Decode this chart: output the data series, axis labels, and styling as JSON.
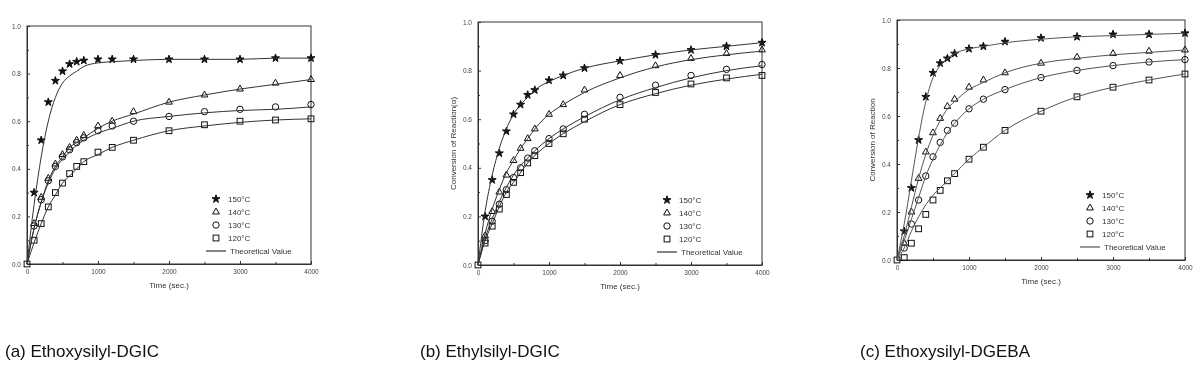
{
  "chart_data": [
    {
      "type": "scatter",
      "title": "(a) Ethoxysilyl-DGIC",
      "xlabel": "Time (sec.)",
      "xlim": [
        0,
        4000
      ],
      "ylim": [
        0,
        1
      ],
      "xticks": [
        0,
        {
          "value": 500,
          "label": null
        },
        1000,
        {
          "value": 1500,
          "label": null
        },
        2000,
        {
          "value": 2500,
          "label": null
        },
        3000,
        {
          "value": 3500,
          "label": null
        },
        4000
      ],
      "yticks": [
        "0.0",
        {
          "value": 0.1,
          "label": null
        },
        {
          "value": 0.2,
          "label": "0.2"
        },
        {
          "value": 0.3,
          "label": null
        },
        {
          "value": 0.4,
          "label": "0.4"
        },
        {
          "value": 0.5,
          "label": null
        },
        {
          "value": 0.6,
          "label": "0.6"
        },
        {
          "value": 0.7,
          "label": null
        },
        {
          "value": 0.8,
          "label": "0.8"
        },
        {
          "value": 0.9,
          "label": null
        },
        {
          "value": 1,
          "label": "1.0"
        }
      ],
      "x": [
        0,
        100,
        200,
        300,
        400,
        500,
        600,
        700,
        800,
        1000,
        1200,
        1500,
        2000,
        2500,
        3000,
        3500,
        4000
      ],
      "legend": "bottom right",
      "grid": false,
      "series": [
        {
          "name": "150°C",
          "color": "#111111",
          "marker": "star",
          "values": [
            null,
            0.3,
            0.52,
            0.68,
            0.77,
            0.81,
            0.84,
            0.85,
            0.855,
            0.86,
            0.86,
            0.86,
            0.86,
            0.86,
            0.86,
            0.865,
            0.865
          ]
        },
        {
          "name": "140°C",
          "color": "#111111",
          "marker": "triangle",
          "values": [
            null,
            0.17,
            0.28,
            0.36,
            0.42,
            0.46,
            0.49,
            0.52,
            0.54,
            0.58,
            0.6,
            0.64,
            0.68,
            0.71,
            0.735,
            0.76,
            0.775
          ]
        },
        {
          "name": "130°C",
          "color": "#111111",
          "marker": "circle",
          "values": [
            null,
            0.16,
            0.27,
            0.35,
            0.41,
            0.45,
            0.48,
            0.51,
            0.53,
            0.56,
            0.58,
            0.6,
            0.62,
            0.64,
            0.65,
            0.66,
            0.67
          ]
        },
        {
          "name": "120°C",
          "color": "#111111",
          "marker": "square",
          "values": [
            0,
            0.1,
            0.17,
            0.24,
            0.3,
            0.34,
            0.38,
            0.41,
            0.43,
            0.47,
            0.49,
            0.52,
            0.56,
            0.585,
            0.6,
            0.605,
            0.61
          ]
        },
        {
          "name": "Theoretical Value",
          "type": "line",
          "color": "#333333",
          "line_style": "solid",
          "values": [
            0,
            0.25,
            0.45,
            0.6,
            0.7,
            0.76,
            0.79,
            0.81,
            0.83,
            0.845,
            0.85,
            0.855,
            0.86,
            0.86,
            0.86,
            0.865,
            0.865
          ]
        },
        {
          "type": "line",
          "color": "#333333",
          "line_style": "solid",
          "values": [
            0,
            0.15,
            0.26,
            0.35,
            0.41,
            0.45,
            0.49,
            0.51,
            0.53,
            0.57,
            0.6,
            0.63,
            0.68,
            0.71,
            0.735,
            0.755,
            0.775
          ]
        },
        {
          "type": "line",
          "color": "#333333",
          "line_style": "solid",
          "values": [
            0,
            0.15,
            0.26,
            0.34,
            0.4,
            0.44,
            0.47,
            0.5,
            0.52,
            0.55,
            0.57,
            0.6,
            0.62,
            0.635,
            0.645,
            0.65,
            0.66
          ]
        },
        {
          "type": "line",
          "color": "#333333",
          "line_style": "solid",
          "values": [
            0,
            0.09,
            0.17,
            0.24,
            0.29,
            0.34,
            0.37,
            0.4,
            0.43,
            0.46,
            0.49,
            0.52,
            0.56,
            0.58,
            0.595,
            0.605,
            0.61
          ]
        }
      ]
    },
    {
      "type": "scatter",
      "title": "(b) Ethylsilyl-DGIC",
      "xlabel": "Time (sec.)",
      "ylabel": "Conversion of Reaction(α)",
      "xlim": [
        0,
        4000
      ],
      "ylim": [
        0,
        1
      ],
      "xticks": [
        0,
        {
          "value": 500,
          "label": null
        },
        1000,
        {
          "value": 1500,
          "label": null
        },
        2000,
        {
          "value": 2500,
          "label": null
        },
        3000,
        {
          "value": 3500,
          "label": null
        },
        4000
      ],
      "yticks": [
        "0.0",
        {
          "value": 0.1,
          "label": null
        },
        {
          "value": 0.2,
          "label": "0.2"
        },
        {
          "value": 0.3,
          "label": null
        },
        {
          "value": 0.4,
          "label": "0.4"
        },
        {
          "value": 0.5,
          "label": null
        },
        {
          "value": 0.6,
          "label": "0.6"
        },
        {
          "value": 0.7,
          "label": null
        },
        {
          "value": 0.8,
          "label": "0.8"
        },
        {
          "value": 0.9,
          "label": null
        },
        {
          "value": 1,
          "label": "1.0"
        }
      ],
      "x": [
        0,
        100,
        200,
        300,
        400,
        500,
        600,
        700,
        800,
        1000,
        1200,
        1500,
        2000,
        2500,
        3000,
        3500,
        4000
      ],
      "legend": "bottom right",
      "grid": false,
      "series": [
        {
          "name": "150°C",
          "color": "#111111",
          "marker": "star",
          "values": [
            null,
            0.2,
            0.35,
            0.46,
            0.55,
            0.62,
            0.66,
            0.7,
            0.72,
            0.76,
            0.78,
            0.81,
            0.84,
            0.865,
            0.885,
            0.9,
            0.915
          ]
        },
        {
          "name": "140°C",
          "color": "#111111",
          "marker": "triangle",
          "values": [
            null,
            0.12,
            0.22,
            0.3,
            0.37,
            0.43,
            0.48,
            0.52,
            0.56,
            0.62,
            0.66,
            0.72,
            0.78,
            0.82,
            0.85,
            0.87,
            0.885
          ]
        },
        {
          "name": "130°C",
          "color": "#111111",
          "marker": "circle",
          "values": [
            null,
            0.1,
            0.18,
            0.25,
            0.31,
            0.36,
            0.4,
            0.44,
            0.47,
            0.52,
            0.56,
            0.62,
            0.69,
            0.74,
            0.78,
            0.805,
            0.825
          ]
        },
        {
          "name": "120°C",
          "color": "#111111",
          "marker": "square",
          "values": [
            0,
            0.09,
            0.16,
            0.23,
            0.29,
            0.34,
            0.38,
            0.42,
            0.45,
            0.5,
            0.54,
            0.6,
            0.66,
            0.71,
            0.745,
            0.77,
            0.78
          ]
        },
        {
          "name": "Theoretical Value",
          "type": "line",
          "color": "#333333",
          "line_style": "solid",
          "values": [
            0,
            0.22,
            0.37,
            0.48,
            0.56,
            0.62,
            0.66,
            0.69,
            0.72,
            0.755,
            0.78,
            0.81,
            0.84,
            0.865,
            0.885,
            0.9,
            0.915
          ]
        },
        {
          "type": "line",
          "color": "#333333",
          "line_style": "solid",
          "values": [
            0,
            0.13,
            0.23,
            0.31,
            0.38,
            0.43,
            0.48,
            0.52,
            0.56,
            0.62,
            0.66,
            0.71,
            0.77,
            0.815,
            0.845,
            0.865,
            0.88
          ]
        },
        {
          "type": "line",
          "color": "#333333",
          "line_style": "solid",
          "values": [
            0,
            0.11,
            0.19,
            0.26,
            0.32,
            0.37,
            0.41,
            0.44,
            0.47,
            0.52,
            0.56,
            0.61,
            0.68,
            0.73,
            0.77,
            0.8,
            0.82
          ]
        },
        {
          "type": "line",
          "color": "#333333",
          "line_style": "solid",
          "values": [
            0,
            0.1,
            0.17,
            0.24,
            0.3,
            0.34,
            0.38,
            0.42,
            0.45,
            0.5,
            0.54,
            0.59,
            0.66,
            0.705,
            0.74,
            0.765,
            0.785
          ]
        }
      ]
    },
    {
      "type": "scatter",
      "title": "(c) Ethoxysilyl-DGEBA",
      "xlabel": "Time (sec.)",
      "ylabel": "Conversion of Reaction",
      "xlim": [
        0,
        4000
      ],
      "ylim": [
        0,
        1
      ],
      "xticks": [
        0,
        {
          "value": 500,
          "label": null
        },
        1000,
        {
          "value": 1500,
          "label": null
        },
        2000,
        {
          "value": 2500,
          "label": null
        },
        3000,
        {
          "value": 3500,
          "label": null
        },
        4000
      ],
      "yticks": [
        "0.0",
        {
          "value": 0.1,
          "label": null
        },
        {
          "value": 0.2,
          "label": "0.2"
        },
        {
          "value": 0.3,
          "label": null
        },
        {
          "value": 0.4,
          "label": "0.4"
        },
        {
          "value": 0.5,
          "label": null
        },
        {
          "value": 0.6,
          "label": "0.6"
        },
        {
          "value": 0.7,
          "label": null
        },
        {
          "value": 0.8,
          "label": "0.8"
        },
        {
          "value": 0.9,
          "label": null
        },
        {
          "value": 1,
          "label": "1.0"
        }
      ],
      "x": [
        0,
        100,
        200,
        300,
        400,
        500,
        600,
        700,
        800,
        1000,
        1200,
        1500,
        2000,
        2500,
        3000,
        3500,
        4000
      ],
      "legend": "bottom right",
      "grid": false,
      "series": [
        {
          "name": "150°C",
          "color": "#111111",
          "marker": "star",
          "values": [
            null,
            0.12,
            0.3,
            0.5,
            0.68,
            0.78,
            0.82,
            0.84,
            0.86,
            0.88,
            0.89,
            0.91,
            0.925,
            0.93,
            0.94,
            0.94,
            0.945
          ]
        },
        {
          "name": "140°C",
          "color": "#111111",
          "marker": "triangle",
          "values": [
            null,
            0.07,
            0.2,
            0.34,
            0.45,
            0.53,
            0.59,
            0.64,
            0.67,
            0.72,
            0.75,
            0.78,
            0.82,
            0.845,
            0.86,
            0.87,
            0.875
          ]
        },
        {
          "name": "130°C",
          "color": "#111111",
          "marker": "circle",
          "values": [
            null,
            0.05,
            0.15,
            0.25,
            0.35,
            0.43,
            0.49,
            0.54,
            0.57,
            0.63,
            0.67,
            0.71,
            0.76,
            0.79,
            0.81,
            0.825,
            0.835
          ]
        },
        {
          "name": "120°C",
          "color": "#111111",
          "marker": "square",
          "values": [
            0,
            0.01,
            0.07,
            0.13,
            0.19,
            0.25,
            0.29,
            0.33,
            0.36,
            0.42,
            0.47,
            0.54,
            0.62,
            0.68,
            0.72,
            0.75,
            0.775
          ]
        },
        {
          "name": "Theoretical Value",
          "type": "line",
          "color": "#555555",
          "line_style": "solid",
          "values": [
            0,
            0.15,
            0.33,
            0.51,
            0.66,
            0.76,
            0.81,
            0.84,
            0.86,
            0.88,
            0.89,
            0.905,
            0.92,
            0.93,
            0.935,
            0.94,
            0.945
          ]
        },
        {
          "type": "line",
          "color": "#555555",
          "line_style": "solid",
          "values": [
            0,
            0.1,
            0.22,
            0.34,
            0.44,
            0.52,
            0.58,
            0.63,
            0.66,
            0.71,
            0.74,
            0.78,
            0.82,
            0.84,
            0.855,
            0.865,
            0.875
          ]
        },
        {
          "type": "line",
          "color": "#555555",
          "line_style": "solid",
          "values": [
            0,
            0.08,
            0.17,
            0.26,
            0.35,
            0.42,
            0.48,
            0.53,
            0.57,
            0.63,
            0.67,
            0.71,
            0.76,
            0.79,
            0.81,
            0.825,
            0.835
          ]
        },
        {
          "type": "line",
          "color": "#555555",
          "line_style": "solid",
          "values": [
            0,
            0.05,
            0.12,
            0.18,
            0.23,
            0.27,
            0.3,
            0.33,
            0.36,
            0.42,
            0.47,
            0.54,
            0.62,
            0.68,
            0.72,
            0.75,
            0.775
          ]
        }
      ]
    }
  ]
}
